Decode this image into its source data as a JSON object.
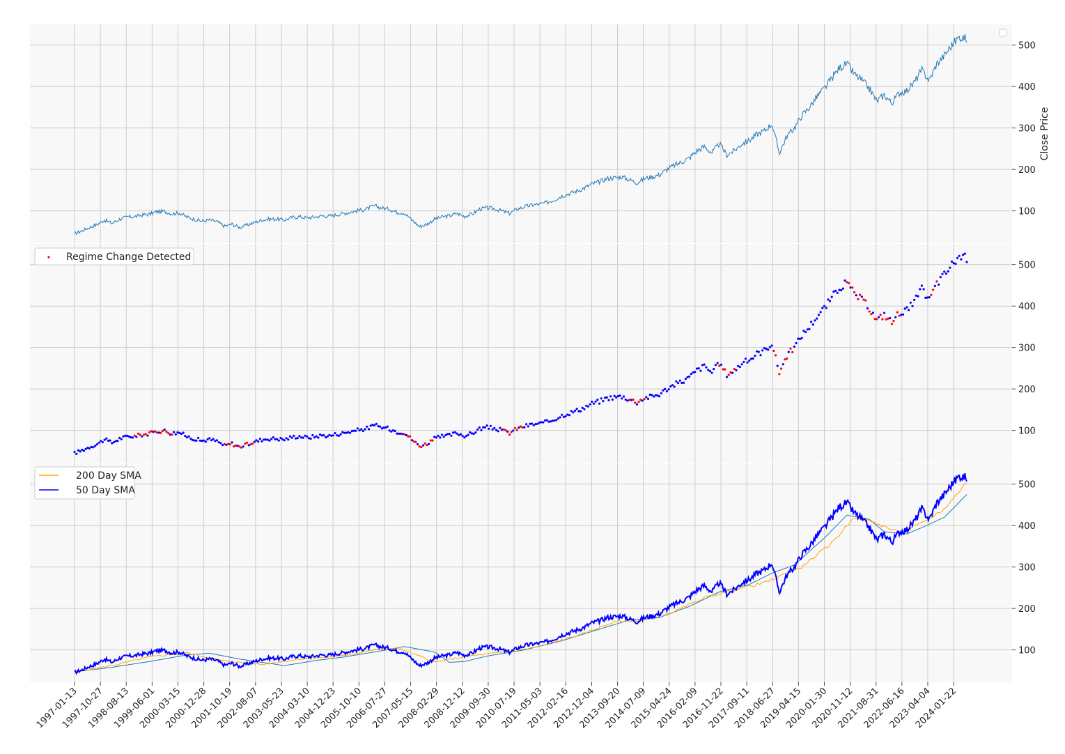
{
  "chart_data": {
    "type": "line",
    "x_ticks": [
      "1997-01-13",
      "1997-10-27",
      "1998-08-13",
      "1999-06-01",
      "2000-03-15",
      "2000-12-28",
      "2001-10-19",
      "2002-08-07",
      "2003-05-23",
      "2004-03-10",
      "2004-12-23",
      "2005-10-10",
      "2006-07-27",
      "2007-05-15",
      "2008-02-29",
      "2008-12-12",
      "2009-09-30",
      "2010-07-19",
      "2011-05-03",
      "2012-02-16",
      "2012-12-04",
      "2013-09-20",
      "2014-07-09",
      "2015-04-24",
      "2016-02-09",
      "2016-11-22",
      "2017-09-11",
      "2018-06-27",
      "2019-04-15",
      "2020-01-30",
      "2020-11-12",
      "2021-08-31",
      "2022-06-16",
      "2023-04-04",
      "2024-01-22"
    ],
    "y_ticks": [
      100,
      200,
      300,
      400,
      500
    ],
    "ylim": [
      22,
      550
    ],
    "ylabel": "Close Price",
    "grid": true,
    "colors": {
      "close": "#1f77b4",
      "regime": "#ff0000",
      "points": "#0000ff",
      "sma200": "#ffa500",
      "sma50": "#0000ff",
      "sma_long": "#1f77b4",
      "panel_bg": "#f8f8f8",
      "grid": "#cccccc"
    },
    "close": [
      [
        0,
        45
      ],
      [
        1,
        52
      ],
      [
        2,
        60
      ],
      [
        3,
        67
      ],
      [
        4,
        78
      ],
      [
        5,
        70
      ],
      [
        6,
        80
      ],
      [
        7,
        85
      ],
      [
        8,
        86
      ],
      [
        9,
        90
      ],
      [
        10,
        92
      ],
      [
        11,
        98
      ],
      [
        12,
        99
      ],
      [
        13,
        93
      ],
      [
        14,
        95
      ],
      [
        15,
        85
      ],
      [
        16,
        80
      ],
      [
        17,
        75
      ],
      [
        18,
        78
      ],
      [
        19,
        74
      ],
      [
        20,
        63
      ],
      [
        21,
        68
      ],
      [
        22,
        60
      ],
      [
        23,
        66
      ],
      [
        24,
        72
      ],
      [
        25,
        78
      ],
      [
        26,
        80
      ],
      [
        27,
        80
      ],
      [
        28,
        78
      ],
      [
        29,
        84
      ],
      [
        30,
        86
      ],
      [
        31,
        83
      ],
      [
        32,
        85
      ],
      [
        33,
        88
      ],
      [
        34,
        87
      ],
      [
        35,
        91
      ],
      [
        36,
        94
      ],
      [
        37,
        98
      ],
      [
        38,
        101
      ],
      [
        39,
        105
      ],
      [
        40,
        112
      ],
      [
        41,
        107
      ],
      [
        42,
        104
      ],
      [
        43,
        97
      ],
      [
        44,
        95
      ],
      [
        45,
        78
      ],
      [
        46,
        62
      ],
      [
        47,
        68
      ],
      [
        48,
        80
      ],
      [
        49,
        85
      ],
      [
        50,
        88
      ],
      [
        51,
        94
      ],
      [
        52,
        87
      ],
      [
        53,
        92
      ],
      [
        54,
        104
      ],
      [
        55,
        107
      ],
      [
        56,
        105
      ],
      [
        57,
        100
      ],
      [
        58,
        94
      ],
      [
        59,
        104
      ],
      [
        60,
        110
      ],
      [
        61,
        114
      ],
      [
        62,
        116
      ],
      [
        63,
        120
      ],
      [
        64,
        127
      ],
      [
        65,
        136
      ],
      [
        66,
        142
      ],
      [
        67,
        148
      ],
      [
        68,
        155
      ],
      [
        69,
        165
      ],
      [
        70,
        170
      ],
      [
        71,
        178
      ],
      [
        72,
        180
      ],
      [
        73,
        182
      ],
      [
        74,
        175
      ],
      [
        75,
        168
      ],
      [
        76,
        178
      ],
      [
        77,
        182
      ],
      [
        78,
        187
      ],
      [
        79,
        200
      ],
      [
        80,
        210
      ],
      [
        81,
        218
      ],
      [
        82,
        228
      ],
      [
        83,
        245
      ],
      [
        84,
        255
      ],
      [
        85,
        240
      ],
      [
        86,
        262
      ],
      [
        87,
        235
      ],
      [
        88,
        245
      ],
      [
        89,
        262
      ],
      [
        90,
        270
      ],
      [
        91,
        285
      ],
      [
        92,
        293
      ],
      [
        93,
        310
      ],
      [
        94,
        240
      ],
      [
        95,
        280
      ],
      [
        96,
        300
      ],
      [
        97,
        330
      ],
      [
        98,
        350
      ],
      [
        99,
        375
      ],
      [
        100,
        395
      ],
      [
        101,
        420
      ],
      [
        102,
        445
      ],
      [
        103,
        455
      ],
      [
        104,
        430
      ],
      [
        105,
        415
      ],
      [
        106,
        395
      ],
      [
        107,
        365
      ],
      [
        108,
        380
      ],
      [
        109,
        360
      ],
      [
        110,
        385
      ],
      [
        111,
        390
      ],
      [
        112,
        410
      ],
      [
        113,
        440
      ],
      [
        114,
        415
      ],
      [
        115,
        455
      ],
      [
        116,
        475
      ],
      [
        117,
        500
      ],
      [
        118,
        520
      ],
      [
        119,
        515
      ]
    ],
    "sma200": [
      [
        0,
        47
      ],
      [
        5,
        62
      ],
      [
        10,
        83
      ],
      [
        15,
        93
      ],
      [
        20,
        73
      ],
      [
        25,
        65
      ],
      [
        30,
        78
      ],
      [
        35,
        84
      ],
      [
        40,
        100
      ],
      [
        43,
        105
      ],
      [
        46,
        85
      ],
      [
        48,
        70
      ],
      [
        52,
        84
      ],
      [
        58,
        96
      ],
      [
        62,
        108
      ],
      [
        68,
        140
      ],
      [
        72,
        168
      ],
      [
        76,
        172
      ],
      [
        80,
        192
      ],
      [
        84,
        226
      ],
      [
        88,
        245
      ],
      [
        92,
        262
      ],
      [
        95,
        285
      ],
      [
        97,
        300
      ],
      [
        101,
        358
      ],
      [
        104,
        420
      ],
      [
        107,
        405
      ],
      [
        110,
        383
      ],
      [
        113,
        405
      ],
      [
        116,
        440
      ],
      [
        119,
        505
      ]
    ],
    "sma50": [
      [
        0,
        46
      ],
      [
        5,
        65
      ],
      [
        10,
        85
      ],
      [
        12,
        95
      ],
      [
        15,
        88
      ],
      [
        18,
        75
      ],
      [
        20,
        65
      ],
      [
        22,
        62
      ],
      [
        25,
        73
      ],
      [
        30,
        80
      ],
      [
        35,
        86
      ],
      [
        40,
        104
      ],
      [
        42,
        108
      ],
      [
        45,
        86
      ],
      [
        47,
        65
      ],
      [
        50,
        80
      ],
      [
        55,
        103
      ],
      [
        58,
        97
      ],
      [
        62,
        112
      ],
      [
        68,
        148
      ],
      [
        72,
        175
      ],
      [
        76,
        175
      ],
      [
        80,
        205
      ],
      [
        84,
        248
      ],
      [
        87,
        242
      ],
      [
        90,
        268
      ],
      [
        93,
        305
      ],
      [
        94,
        255
      ],
      [
        97,
        320
      ],
      [
        100,
        385
      ],
      [
        103,
        445
      ],
      [
        105,
        420
      ],
      [
        107,
        375
      ],
      [
        109,
        370
      ],
      [
        112,
        405
      ],
      [
        114,
        425
      ],
      [
        116,
        465
      ],
      [
        119,
        510
      ]
    ],
    "sma_long": [
      [
        0,
        47
      ],
      [
        5,
        58
      ],
      [
        10,
        72
      ],
      [
        15,
        88
      ],
      [
        18,
        92
      ],
      [
        22,
        78
      ],
      [
        25,
        70
      ],
      [
        28,
        62
      ],
      [
        32,
        74
      ],
      [
        36,
        83
      ],
      [
        40,
        95
      ],
      [
        44,
        108
      ],
      [
        48,
        95
      ],
      [
        50,
        70
      ],
      [
        52,
        72
      ],
      [
        55,
        85
      ],
      [
        60,
        100
      ],
      [
        65,
        122
      ],
      [
        70,
        150
      ],
      [
        74,
        172
      ],
      [
        78,
        178
      ],
      [
        82,
        205
      ],
      [
        86,
        240
      ],
      [
        90,
        258
      ],
      [
        93,
        285
      ],
      [
        96,
        305
      ],
      [
        100,
        370
      ],
      [
        103,
        425
      ],
      [
        106,
        415
      ],
      [
        108,
        385
      ],
      [
        111,
        380
      ],
      [
        113,
        395
      ],
      [
        116,
        420
      ],
      [
        119,
        475
      ]
    ],
    "regime_segments": [
      [
        8,
        13
      ],
      [
        20,
        24
      ],
      [
        44,
        48
      ],
      [
        57,
        60
      ],
      [
        74,
        76
      ],
      [
        86,
        88
      ],
      [
        93,
        96
      ],
      [
        103,
        110
      ],
      [
        114,
        115
      ]
    ],
    "legends": {
      "regime": "Regime Change Detected",
      "sma200": "200 Day SMA",
      "sma50": "50 Day SMA"
    }
  }
}
